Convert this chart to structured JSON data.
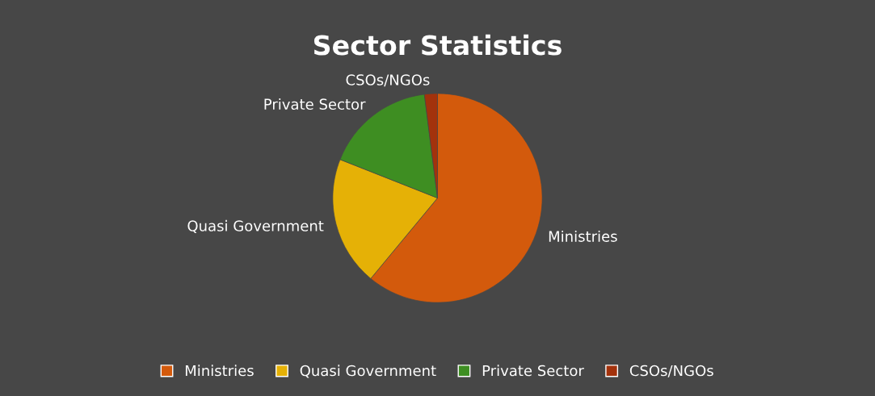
{
  "chart_data": {
    "type": "pie",
    "title": "Sector Statistics",
    "categories": [
      "Ministries",
      "Quasi Government",
      "Private Sector",
      "CSOs/NGOs"
    ],
    "values": [
      61,
      20,
      17,
      2
    ],
    "colors": [
      "#d35a0c",
      "#e5b106",
      "#3e8e22",
      "#a3320c"
    ],
    "legend": "bottom"
  }
}
